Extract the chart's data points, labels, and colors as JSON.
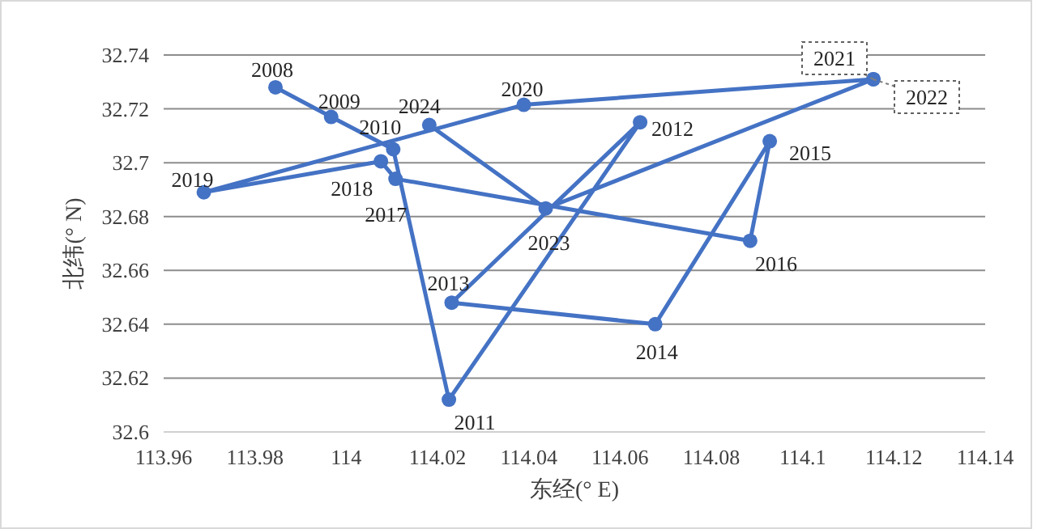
{
  "chart_data": {
    "type": "line",
    "xlabel": "东经(° E)",
    "ylabel": "北纬(° N)",
    "xlim": [
      113.96,
      114.14
    ],
    "ylim": [
      32.6,
      32.74
    ],
    "xticks": [
      113.96,
      113.98,
      114,
      114.02,
      114.04,
      114.06,
      114.08,
      114.1,
      114.12,
      114.14
    ],
    "yticks": [
      32.6,
      32.62,
      32.64,
      32.66,
      32.68,
      32.7,
      32.72,
      32.74
    ],
    "grid": "y",
    "marker": "circle",
    "line_style": "solid",
    "series": [
      {
        "color": "#4472c4",
        "x": [
          113.9845,
          113.9967,
          114.0103,
          114.0225,
          114.0644,
          114.0231,
          114.0677,
          114.0928,
          114.0885,
          114.0108,
          114.0076,
          113.9688,
          114.0389,
          114.1155,
          114.1155,
          114.0437,
          114.0182
        ],
        "values": [
          32.728,
          32.717,
          32.705,
          32.612,
          32.715,
          32.648,
          32.64,
          32.708,
          32.671,
          32.694,
          32.7005,
          32.689,
          32.7215,
          32.731,
          32.731,
          32.683,
          32.714
        ]
      }
    ],
    "annotations": [
      {
        "text": "2008",
        "x": 113.9845,
        "y": 32.728
      },
      {
        "text": "2009",
        "x": 113.9967,
        "y": 32.717
      },
      {
        "text": "2010",
        "x": 114.0103,
        "y": 32.705
      },
      {
        "text": "2011",
        "x": 114.0225,
        "y": 32.612
      },
      {
        "text": "2012",
        "x": 114.0644,
        "y": 32.715
      },
      {
        "text": "2013",
        "x": 114.0231,
        "y": 32.648
      },
      {
        "text": "2014",
        "x": 114.0677,
        "y": 32.64
      },
      {
        "text": "2015",
        "x": 114.0928,
        "y": 32.708
      },
      {
        "text": "2016",
        "x": 114.0885,
        "y": 32.671
      },
      {
        "text": "2017",
        "x": 114.0108,
        "y": 32.694
      },
      {
        "text": "2018",
        "x": 114.0076,
        "y": 32.7005
      },
      {
        "text": "2019",
        "x": 113.9688,
        "y": 32.689
      },
      {
        "text": "2020",
        "x": 114.0389,
        "y": 32.7215
      },
      {
        "text": "2021",
        "x": 114.1155,
        "y": 32.731
      },
      {
        "text": "2022",
        "x": 114.1155,
        "y": 32.731
      },
      {
        "text": "2023",
        "x": 114.0437,
        "y": 32.683
      },
      {
        "text": "2024",
        "x": 114.0182,
        "y": 32.714
      }
    ]
  }
}
